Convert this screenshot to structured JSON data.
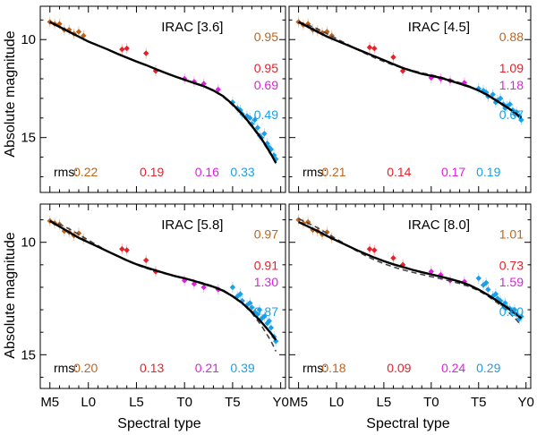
{
  "figure": {
    "ylabel": "Absolute magnitude",
    "xlabel": "Spectral type",
    "x_tick_labels": [
      "M5",
      "L0",
      "L5",
      "T0",
      "T5",
      "Y0"
    ],
    "rms_label": "rms:"
  },
  "colors": {
    "M": "#c0641a",
    "L": "#e8202a",
    "T": "#e020e0",
    "late_T": "#1aa0e8",
    "fit": "#000000",
    "old_fit": "#444444"
  },
  "chart_data": [
    {
      "type": "scatter",
      "title": "IRAC [3.6]",
      "xlabel": "Spectral type",
      "ylabel": "Absolute magnitude",
      "xlim": [
        5.0,
        30.5
      ],
      "ylim": [
        17.8,
        8.3
      ],
      "x_ticks": [
        6,
        10,
        15,
        20,
        25,
        30
      ],
      "y_ticks": [
        10,
        15
      ],
      "sigmas": [
        "0.95",
        "0.95",
        "0.69",
        "0.49"
      ],
      "rms": [
        "0.22",
        "0.19",
        "0.16",
        "0.33"
      ],
      "fit_curve": {
        "x": [
          6,
          7,
          8,
          9,
          10,
          11,
          12,
          13,
          14,
          15,
          16,
          17,
          18,
          19,
          20,
          21,
          22,
          23,
          24,
          25,
          26,
          27,
          28,
          29,
          29.5
        ],
        "y": [
          9.1,
          9.35,
          9.6,
          9.85,
          10.1,
          10.3,
          10.5,
          10.72,
          10.92,
          11.12,
          11.3,
          11.5,
          11.7,
          11.88,
          12.05,
          12.22,
          12.38,
          12.6,
          12.88,
          13.3,
          13.8,
          14.4,
          15.05,
          15.85,
          16.3
        ]
      },
      "old_fit_curve": {
        "x": [
          24,
          25,
          26,
          27,
          28,
          29
        ],
        "y": [
          12.92,
          13.35,
          13.85,
          14.45,
          15.1,
          15.9
        ]
      },
      "series": [
        {
          "name": "M",
          "x": [
            6,
            6.5,
            7,
            7.5,
            8,
            8.5,
            9,
            9.5
          ],
          "y": [
            9.1,
            9.2,
            9.2,
            9.5,
            9.5,
            9.7,
            9.6,
            9.8
          ]
        },
        {
          "name": "L",
          "x": [
            13.5,
            14,
            16,
            17
          ],
          "y": [
            10.5,
            10.45,
            10.7,
            11.6
          ]
        },
        {
          "name": "T",
          "x": [
            20,
            21,
            22,
            23.5
          ],
          "y": [
            12.0,
            12.15,
            12.25,
            12.55
          ]
        },
        {
          "name": "late_T",
          "x": [
            25,
            25.5,
            26,
            26.5,
            27,
            27.3,
            27.6,
            28,
            28.3,
            28.6,
            29,
            29.3,
            25.8,
            26.8,
            27.8,
            28.8,
            29.5
          ],
          "y": [
            13.2,
            13.5,
            13.8,
            13.9,
            14.3,
            14.1,
            14.5,
            15.0,
            14.8,
            15.3,
            15.6,
            15.9,
            13.6,
            14.0,
            14.9,
            15.5,
            16.1
          ]
        }
      ]
    },
    {
      "type": "scatter",
      "title": "IRAC [4.5]",
      "xlabel": "Spectral type",
      "ylabel": "Absolute magnitude",
      "xlim": [
        5.0,
        30.5
      ],
      "ylim": [
        17.8,
        8.3
      ],
      "x_ticks": [
        6,
        10,
        15,
        20,
        25,
        30
      ],
      "y_ticks": [
        10,
        15
      ],
      "sigmas": [
        "0.88",
        "1.09",
        "1.18",
        "0.67"
      ],
      "rms": [
        "0.21",
        "0.14",
        "0.17",
        "0.19"
      ],
      "fit_curve": {
        "x": [
          6,
          7,
          8,
          9,
          10,
          11,
          12,
          13,
          14,
          15,
          16,
          17,
          18,
          19,
          20,
          21,
          22,
          23,
          24,
          25,
          26,
          27,
          28,
          29,
          29.5
        ],
        "y": [
          9.1,
          9.35,
          9.6,
          9.85,
          10.05,
          10.25,
          10.45,
          10.65,
          10.85,
          11.05,
          11.25,
          11.45,
          11.6,
          11.75,
          11.85,
          11.95,
          12.1,
          12.25,
          12.4,
          12.6,
          12.85,
          13.15,
          13.45,
          13.8,
          14.0
        ]
      },
      "old_fit_curve": {
        "x": [
          6,
          7,
          8,
          9,
          10,
          11,
          12,
          13,
          14,
          15,
          16,
          17,
          18,
          19,
          20,
          21,
          22,
          23,
          24,
          25,
          26,
          27,
          28,
          29,
          29.5
        ],
        "y": [
          9.1,
          9.25,
          9.45,
          9.7,
          9.95,
          10.2,
          10.45,
          10.7,
          10.92,
          11.12,
          11.3,
          11.45,
          11.58,
          11.7,
          11.8,
          11.92,
          12.05,
          12.2,
          12.38,
          12.6,
          12.85,
          13.15,
          13.45,
          13.75,
          13.95
        ]
      },
      "series": [
        {
          "name": "M",
          "x": [
            6,
            6.5,
            7,
            7.5,
            8,
            8.5,
            9,
            9.5
          ],
          "y": [
            9.1,
            9.25,
            9.2,
            9.5,
            9.55,
            9.65,
            9.6,
            9.8
          ]
        },
        {
          "name": "L",
          "x": [
            13.5,
            14,
            16,
            17
          ],
          "y": [
            10.4,
            10.45,
            10.9,
            11.6
          ]
        },
        {
          "name": "T",
          "x": [
            20,
            21,
            22,
            23.5
          ],
          "y": [
            11.95,
            12.0,
            12.1,
            12.2
          ]
        },
        {
          "name": "late_T",
          "x": [
            25,
            25.5,
            26,
            26.5,
            27,
            27.3,
            27.6,
            28,
            28.3,
            28.6,
            29,
            29.3,
            25.8,
            26.8,
            27.8,
            28.8,
            29.5
          ],
          "y": [
            12.5,
            12.6,
            12.9,
            12.8,
            13.1,
            13.0,
            13.3,
            13.4,
            13.3,
            13.6,
            13.7,
            13.9,
            12.7,
            13.2,
            13.5,
            13.8,
            14.1
          ]
        }
      ]
    },
    {
      "type": "scatter",
      "title": "IRAC [5.8]",
      "xlabel": "Spectral type",
      "ylabel": "Absolute magnitude",
      "xlim": [
        5.0,
        30.5
      ],
      "ylim": [
        16.5,
        8.3
      ],
      "x_ticks": [
        6,
        10,
        15,
        20,
        25,
        30
      ],
      "y_ticks": [
        10,
        15
      ],
      "sigmas": [
        "0.97",
        "0.91",
        "1.30",
        "0.87"
      ],
      "rms": [
        "0.20",
        "0.13",
        "0.21",
        "0.39"
      ],
      "fit_curve": {
        "x": [
          6,
          7,
          8,
          9,
          10,
          11,
          12,
          13,
          14,
          15,
          16,
          17,
          18,
          19,
          20,
          21,
          22,
          23,
          24,
          25,
          26,
          27,
          28,
          29,
          29.5
        ],
        "y": [
          9.05,
          9.3,
          9.55,
          9.8,
          10.0,
          10.2,
          10.4,
          10.6,
          10.8,
          10.98,
          11.12,
          11.25,
          11.38,
          11.5,
          11.6,
          11.72,
          11.85,
          11.98,
          12.15,
          12.4,
          12.7,
          13.1,
          13.55,
          14.05,
          14.35
        ]
      },
      "old_fit_curve": {
        "x": [
          6,
          7,
          8,
          9,
          10,
          11,
          12,
          13,
          14,
          15,
          16,
          17,
          18,
          19,
          20,
          21,
          22,
          23,
          24,
          25,
          26,
          27,
          28,
          29,
          29.5
        ],
        "y": [
          9.05,
          9.2,
          9.4,
          9.65,
          9.9,
          10.15,
          10.4,
          10.62,
          10.82,
          11.0,
          11.15,
          11.28,
          11.4,
          11.5,
          11.6,
          11.7,
          11.82,
          11.95,
          12.12,
          12.38,
          12.7,
          13.15,
          13.7,
          14.4,
          14.85
        ]
      },
      "series": [
        {
          "name": "M",
          "x": [
            6,
            6.5,
            7,
            7.5,
            8,
            8.5,
            9,
            9.5
          ],
          "y": [
            9.05,
            9.15,
            9.2,
            9.5,
            9.55,
            9.7,
            9.6,
            9.85
          ]
        },
        {
          "name": "L",
          "x": [
            13.5,
            14,
            16,
            17
          ],
          "y": [
            10.3,
            10.35,
            10.8,
            11.3
          ]
        },
        {
          "name": "T",
          "x": [
            20,
            21,
            22,
            23.5
          ],
          "y": [
            11.7,
            11.85,
            12.0,
            12.1
          ]
        },
        {
          "name": "late_T",
          "x": [
            25,
            25.5,
            26,
            26.5,
            27,
            27.3,
            27.6,
            28,
            28.3,
            28.6,
            29,
            29.3,
            25.8,
            26.8,
            27.8,
            28.8,
            29.5
          ],
          "y": [
            12.0,
            12.4,
            12.6,
            12.8,
            12.9,
            13.1,
            13.2,
            13.4,
            13.3,
            13.6,
            13.8,
            14.2,
            12.3,
            12.7,
            13.0,
            13.5,
            14.4
          ]
        }
      ]
    },
    {
      "type": "scatter",
      "title": "IRAC [8.0]",
      "xlabel": "Spectral type",
      "ylabel": "Absolute magnitude",
      "xlim": [
        5.0,
        30.5
      ],
      "ylim": [
        16.5,
        8.3
      ],
      "x_ticks": [
        6,
        10,
        15,
        20,
        25,
        30
      ],
      "y_ticks": [
        10,
        15
      ],
      "sigmas": [
        "1.01",
        "0.73",
        "1.59",
        "0.80"
      ],
      "rms": [
        "0.18",
        "0.09",
        "0.24",
        "0.29"
      ],
      "fit_curve": {
        "x": [
          6,
          7,
          8,
          9,
          10,
          11,
          12,
          13,
          14,
          15,
          16,
          17,
          18,
          19,
          20,
          21,
          22,
          23,
          24,
          25,
          26,
          27,
          28,
          29,
          29.5
        ],
        "y": [
          9.1,
          9.3,
          9.5,
          9.72,
          9.92,
          10.12,
          10.32,
          10.5,
          10.68,
          10.84,
          10.98,
          11.1,
          11.22,
          11.33,
          11.43,
          11.53,
          11.63,
          11.75,
          11.9,
          12.1,
          12.35,
          12.62,
          12.9,
          13.2,
          13.38
        ]
      },
      "old_fit_curve": {
        "x": [
          6,
          7,
          8,
          9,
          10,
          11,
          12,
          13,
          14,
          15,
          16,
          17,
          18,
          19,
          20,
          21,
          22,
          23,
          24,
          25,
          26,
          27,
          28,
          29,
          29.5
        ],
        "y": [
          8.95,
          9.15,
          9.35,
          9.6,
          9.85,
          10.1,
          10.35,
          10.58,
          10.78,
          10.95,
          11.1,
          11.22,
          11.33,
          11.43,
          11.53,
          11.62,
          11.72,
          11.83,
          11.97,
          12.15,
          12.4,
          12.7,
          13.05,
          13.45,
          13.7
        ]
      },
      "series": [
        {
          "name": "M",
          "x": [
            6,
            6.5,
            7,
            7.5,
            8,
            8.5,
            9,
            9.5
          ],
          "y": [
            9.0,
            9.15,
            9.1,
            9.45,
            9.5,
            9.65,
            9.55,
            9.8
          ]
        },
        {
          "name": "L",
          "x": [
            13.5,
            14,
            16,
            17
          ],
          "y": [
            10.3,
            10.35,
            10.7,
            11.0
          ]
        },
        {
          "name": "T",
          "x": [
            20,
            21,
            22,
            23.5
          ],
          "y": [
            11.3,
            11.45,
            11.7,
            11.75
          ]
        },
        {
          "name": "late_T",
          "x": [
            25,
            25.5,
            26,
            26.5,
            27,
            27.3,
            27.6,
            28,
            28.3,
            28.6,
            29,
            29.3,
            25.8,
            26.8,
            27.8,
            28.8,
            29.5
          ],
          "y": [
            11.6,
            11.9,
            12.1,
            12.4,
            12.5,
            12.6,
            12.8,
            12.9,
            12.95,
            13.1,
            13.2,
            13.4,
            11.8,
            12.3,
            12.7,
            13.0,
            13.3
          ]
        }
      ]
    }
  ]
}
